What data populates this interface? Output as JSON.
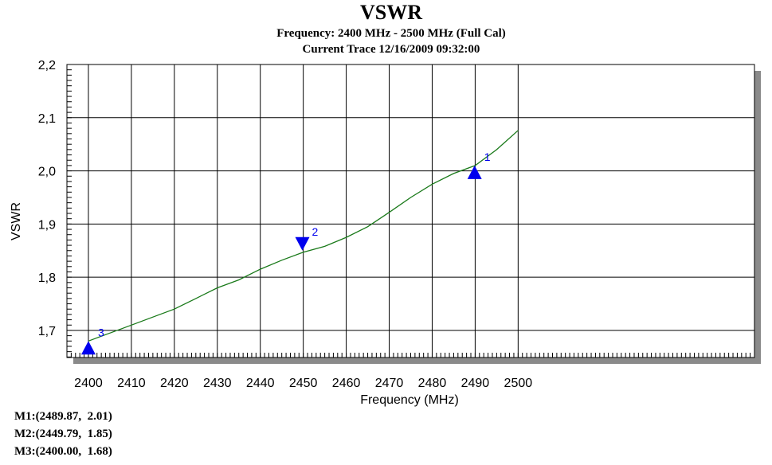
{
  "chart_data": {
    "type": "line",
    "title": "VSWR",
    "subtitle_lines": [
      "Frequency: 2400 MHz - 2500 MHz (Full Cal)",
      "Current Trace 12/16/2009 09:32:00"
    ],
    "xlabel": "Frequency (MHz)",
    "ylabel": "VSWR",
    "xlim": [
      2395,
      2555
    ],
    "ylim": [
      1.649,
      2.2
    ],
    "x_ticks": [
      2400,
      2410,
      2420,
      2430,
      2440,
      2450,
      2460,
      2470,
      2480,
      2490,
      2500
    ],
    "x_tick_labels": [
      "2400",
      "2410",
      "2420",
      "2430",
      "2440",
      "2450",
      "2460",
      "2470",
      "2480",
      "2490",
      "2500"
    ],
    "y_ticks": [
      1.7,
      1.8,
      1.9,
      2.0,
      2.1,
      2.2
    ],
    "y_tick_labels": [
      "1,7",
      "1,8",
      "1,9",
      "2,0",
      "2,1",
      "2,2"
    ],
    "grid": true,
    "line_color": "#1a7a1a",
    "marker_color": "#0000ee",
    "series": [
      {
        "x": [
          2400,
          2405,
          2410,
          2415,
          2420,
          2425,
          2430,
          2435,
          2440,
          2445,
          2450,
          2455,
          2460,
          2465,
          2470,
          2475,
          2480,
          2485,
          2490,
          2495,
          2500
        ],
        "y": [
          1.68,
          1.695,
          1.71,
          1.725,
          1.74,
          1.76,
          1.78,
          1.795,
          1.815,
          1.832,
          1.847,
          1.858,
          1.875,
          1.895,
          1.922,
          1.95,
          1.975,
          1.995,
          2.01,
          2.04,
          2.076
        ]
      }
    ],
    "markers": [
      {
        "label": "1",
        "x": 2489.87,
        "y": 2.01,
        "direction": "up"
      },
      {
        "label": "2",
        "x": 2449.79,
        "y": 1.85,
        "direction": "down"
      },
      {
        "label": "3",
        "x": 2400.0,
        "y": 1.68,
        "direction": "up"
      }
    ],
    "marker_readouts": [
      "M1:(2489.87,  2.01)",
      "M2:(2449.79,  1.85)",
      "M3:(2400.00,  1.68)"
    ]
  }
}
